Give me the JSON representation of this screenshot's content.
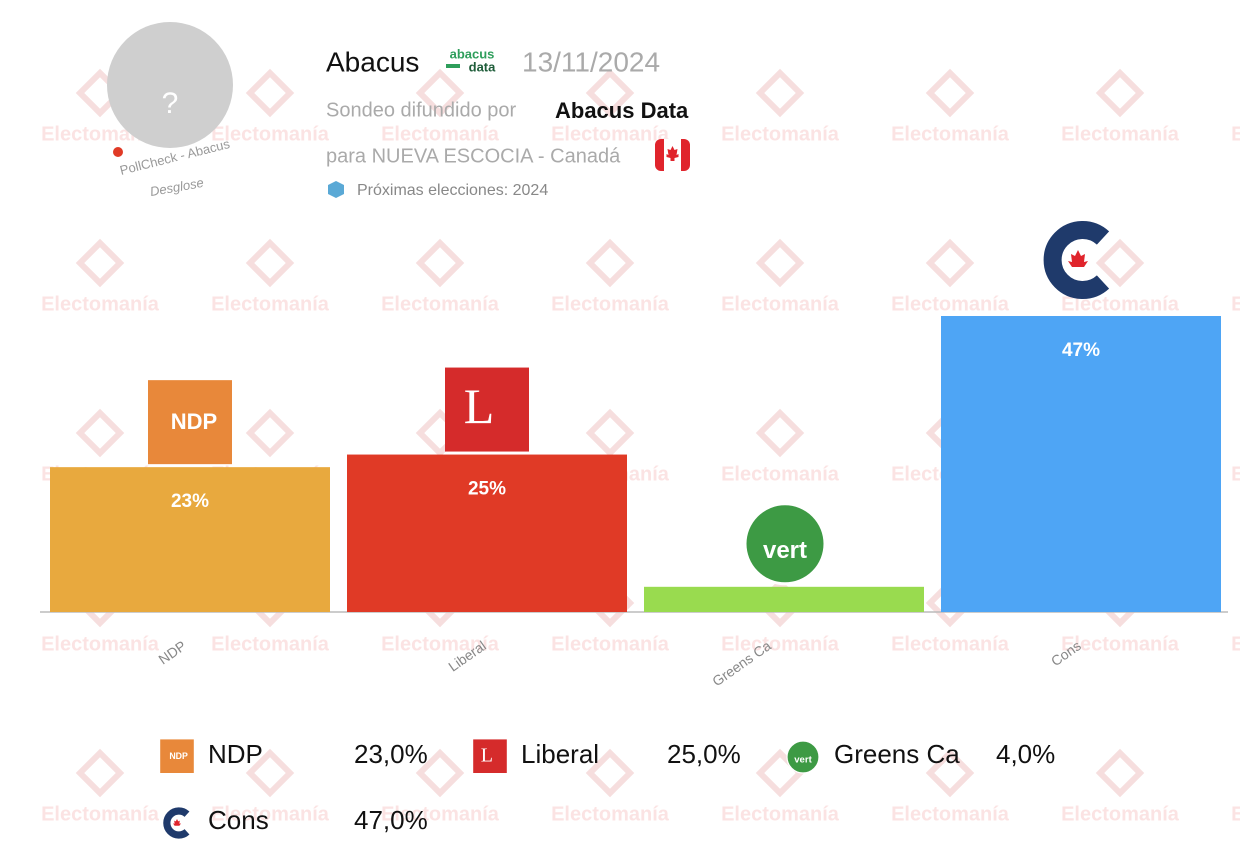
{
  "header": {
    "avatar": "?",
    "pollcheck": "PollCheck - Abacus",
    "breakdown": "Desglose",
    "pollster": "Abacus",
    "pollster_logo": [
      "abacus",
      "data"
    ],
    "date": "13/11/2024",
    "released_by": "Sondeo difundido por",
    "released_by_name": "Abacus Data",
    "region": "para NUEVA ESCOCIA - Canadá",
    "next_elections": "Próximas elecciones: 2024"
  },
  "watermark": "Electomanía",
  "chart_data": {
    "type": "bar",
    "categories": [
      "NDP",
      "Liberal",
      "Greens Ca",
      "Cons"
    ],
    "values": [
      23,
      25,
      4,
      47
    ],
    "value_labels": [
      "23%",
      "25%",
      null,
      "47%"
    ],
    "colors": [
      "#e8a93e",
      "#e03a26",
      "#99db4f",
      "#4ea5f5"
    ],
    "logos": [
      "NDP",
      "L",
      "vert",
      null
    ],
    "legend_labels": [
      "23,0%",
      "25,0%",
      "4,0%",
      "47,0%"
    ]
  }
}
